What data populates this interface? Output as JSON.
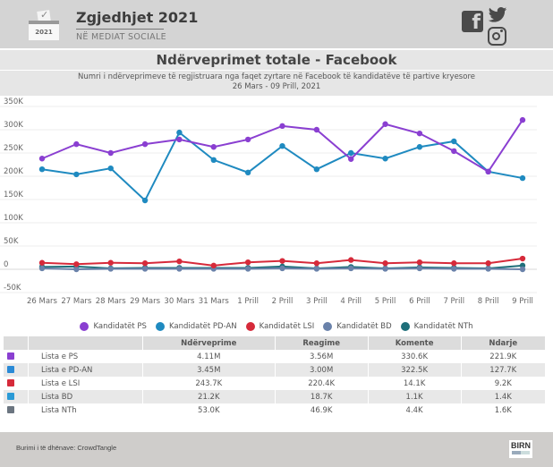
{
  "header": {
    "brand_title": "Zgjedhjet 2021",
    "brand_subtitle": "NË MEDIAT SOCIALE",
    "ballot_year": "2021",
    "social_icons": [
      "facebook-icon",
      "twitter-icon",
      "instagram-icon"
    ]
  },
  "chart_data": {
    "type": "line",
    "title": "Ndërveprimet totale - Facebook",
    "subtitle": "Numri i ndërveprimeve të regjistruara nga faqet zyrtare në Facebook të kandidatëve të partive kryesore",
    "date_range": "26 Mars - 09 Prill, 2021",
    "xlabel": "",
    "ylabel": "",
    "ylim": [
      -50000,
      350000
    ],
    "yticks": [
      350000,
      300000,
      250000,
      200000,
      150000,
      100000,
      50000,
      0,
      -50000
    ],
    "ytick_labels": [
      "350K",
      "300K",
      "250K",
      "200K",
      "150K",
      "100K",
      "50K",
      "0",
      "-50K"
    ],
    "grid": true,
    "legend_position": "bottom",
    "categories": [
      "26 Mars",
      "27 Mars",
      "28 Mars",
      "29 Mars",
      "30 Mars",
      "31 Mars",
      "1 Prill",
      "2 Prill",
      "3 Prill",
      "4 Prill",
      "5 Prill",
      "6 Prill",
      "7 Prill",
      "8 Prill",
      "9 Prill"
    ],
    "series": [
      {
        "name": "Kandidatët PS",
        "color": "#8a3fd1",
        "values": [
          238000,
          269000,
          250000,
          269000,
          279000,
          263000,
          279000,
          308000,
          300000,
          237000,
          312000,
          292000,
          254000,
          210000,
          321000
        ]
      },
      {
        "name": "Kandidatët PD-AN",
        "color": "#1f8ac0",
        "values": [
          215000,
          204000,
          217000,
          148000,
          294000,
          235000,
          208000,
          265000,
          215000,
          250000,
          238000,
          263000,
          275000,
          210000,
          196000
        ]
      },
      {
        "name": "Kandidatët LSI",
        "color": "#d62a3a",
        "values": [
          14000,
          11000,
          14000,
          13000,
          17000,
          8000,
          15000,
          18000,
          13000,
          20000,
          13000,
          15000,
          13000,
          13000,
          23000
        ]
      },
      {
        "name": "Kandidatët BD",
        "color": "#6a82aa",
        "values": [
          2000,
          0,
          1000,
          1000,
          1000,
          1000,
          1000,
          2000,
          1000,
          2000,
          1000,
          2000,
          1000,
          1000,
          0
        ]
      },
      {
        "name": "Kandidatët NTh",
        "color": "#1e6f7a",
        "values": [
          5000,
          6000,
          2000,
          3000,
          3000,
          3000,
          3000,
          6000,
          2000,
          5000,
          2000,
          4000,
          3000,
          2000,
          8000
        ]
      }
    ]
  },
  "table": {
    "headers": [
      "",
      "",
      "Ndërveprime",
      "Reagime",
      "Komente",
      "Ndarje"
    ],
    "rows": [
      {
        "icon": "ps-logo-icon",
        "icon_color": "#8a3fd1",
        "name": "Lista e PS",
        "values": [
          "4.11M",
          "3.56M",
          "330.6K",
          "221.9K"
        ]
      },
      {
        "icon": "pd-an-logo-icon",
        "icon_color": "#2a8ad6",
        "name": "Lista e PD-AN",
        "values": [
          "3.45M",
          "3.00M",
          "322.5K",
          "127.7K"
        ]
      },
      {
        "icon": "lsi-logo-icon",
        "icon_color": "#d62a3a",
        "name": "Lista e LSI",
        "values": [
          "243.7K",
          "220.4K",
          "14.1K",
          "9.2K"
        ]
      },
      {
        "icon": "bd-logo-icon",
        "icon_color": "#2a9ad6",
        "name": "Lista BD",
        "values": [
          "21.2K",
          "18.7K",
          "1.1K",
          "1.4K"
        ]
      },
      {
        "icon": "nth-logo-icon",
        "icon_color": "#6b7580",
        "name": "Lista NTh",
        "values": [
          "53.0K",
          "46.9K",
          "4.4K",
          "1.6K"
        ]
      }
    ]
  },
  "footer": {
    "source": "Burimi i të dhënave: CrowdTangle",
    "logo": "BIRN"
  }
}
